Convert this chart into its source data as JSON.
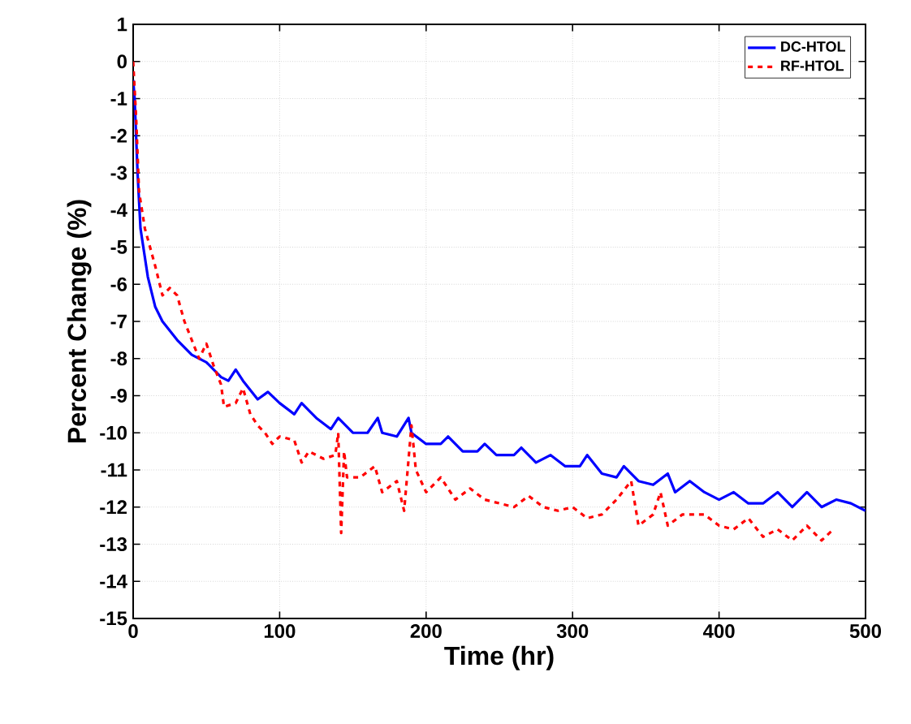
{
  "chart_data": {
    "type": "line",
    "xlabel": "Time (hr)",
    "ylabel": "Percent Change (%)",
    "xlim": [
      0,
      500
    ],
    "ylim": [
      -15,
      1
    ],
    "xticks": [
      0,
      100,
      200,
      300,
      400,
      500
    ],
    "yticks": [
      -15,
      -14,
      -13,
      -12,
      -11,
      -10,
      -9,
      -8,
      -7,
      -6,
      -5,
      -4,
      -3,
      -2,
      -1,
      0,
      1
    ],
    "grid": true,
    "legend": "top right",
    "marker": "none",
    "series": [
      {
        "name": "DC-HTOL",
        "color": "#0000ff",
        "line_style": "solid",
        "x": [
          0,
          1,
          3,
          5,
          10,
          15,
          20,
          30,
          40,
          50,
          60,
          65,
          70,
          75,
          85,
          92,
          100,
          110,
          115,
          125,
          135,
          140,
          145,
          150,
          160,
          167,
          170,
          180,
          188,
          190,
          200,
          210,
          215,
          225,
          235,
          240,
          248,
          260,
          265,
          275,
          285,
          295,
          305,
          310,
          320,
          330,
          335,
          345,
          355,
          365,
          370,
          380,
          390,
          400,
          410,
          420,
          430,
          440,
          450,
          460,
          470,
          480,
          490,
          500
        ],
        "values": [
          -0.5,
          -1,
          -3,
          -4.5,
          -5.8,
          -6.6,
          -7,
          -7.5,
          -7.9,
          -8.1,
          -8.5,
          -8.6,
          -8.3,
          -8.6,
          -9.1,
          -8.9,
          -9.2,
          -9.5,
          -9.2,
          -9.6,
          -9.9,
          -9.6,
          -9.8,
          -10,
          -10,
          -9.6,
          -10,
          -10.1,
          -9.6,
          -10,
          -10.3,
          -10.3,
          -10.1,
          -10.5,
          -10.5,
          -10.3,
          -10.6,
          -10.6,
          -10.4,
          -10.8,
          -10.6,
          -10.9,
          -10.9,
          -10.6,
          -11.1,
          -11.2,
          -10.9,
          -11.3,
          -11.4,
          -11.1,
          -11.6,
          -11.3,
          -11.6,
          -11.8,
          -11.6,
          -11.9,
          -11.9,
          -11.6,
          -12,
          -11.6,
          -12,
          -11.8,
          -11.9,
          -12.1
        ]
      },
      {
        "name": "RF-HTOL",
        "color": "#ff0000",
        "line_style": "dashed",
        "x": [
          0,
          2,
          4,
          8,
          15,
          20,
          25,
          30,
          35,
          40,
          45,
          50,
          55,
          60,
          62,
          70,
          75,
          80,
          85,
          90,
          95,
          100,
          110,
          115,
          120,
          130,
          138,
          140,
          142,
          144,
          146,
          155,
          165,
          170,
          180,
          185,
          190,
          193,
          200,
          210,
          220,
          230,
          240,
          250,
          260,
          270,
          280,
          290,
          300,
          310,
          320,
          330,
          340,
          345,
          355,
          360,
          365,
          375,
          390,
          400,
          410,
          420,
          430,
          440,
          450,
          460,
          470,
          478
        ],
        "values": [
          0,
          -1.5,
          -3.5,
          -4.5,
          -5.5,
          -6.3,
          -6.1,
          -6.3,
          -7,
          -7.5,
          -8,
          -7.6,
          -8.2,
          -8.7,
          -9.3,
          -9.2,
          -8.8,
          -9.5,
          -9.8,
          -10,
          -10.3,
          -10.1,
          -10.2,
          -10.8,
          -10.5,
          -10.7,
          -10.6,
          -10,
          -12.7,
          -10.5,
          -11.2,
          -11.2,
          -10.9,
          -11.6,
          -11.3,
          -12.1,
          -9.8,
          -11,
          -11.6,
          -11.2,
          -11.8,
          -11.5,
          -11.8,
          -11.9,
          -12,
          -11.7,
          -12,
          -12.1,
          -12,
          -12.3,
          -12.2,
          -11.8,
          -11.3,
          -12.5,
          -12.2,
          -11.6,
          -12.5,
          -12.2,
          -12.2,
          -12.5,
          -12.6,
          -12.3,
          -12.8,
          -12.6,
          -12.9,
          -12.5,
          -12.9,
          -12.6
        ]
      }
    ]
  }
}
